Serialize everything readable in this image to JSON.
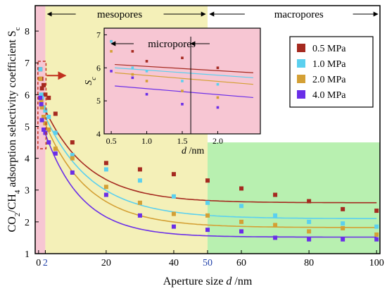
{
  "chart_data": {
    "type": "scatter",
    "xlabel_prefix": "Aperture size ",
    "xlabel_var": "d",
    "xlabel_unit": " /nm",
    "ylabel": "CO2/CH4 adsorption selectivity coefficient Sc",
    "ylabel_parts": {
      "a": "CO",
      "b": "2",
      "c": "/CH",
      "d": "4",
      "e": " adsorption selectivity coefficient S",
      "f": "c"
    },
    "xlim": [
      -1,
      101
    ],
    "ylim": [
      1,
      8.8
    ],
    "x_ticks": [
      "0",
      "2",
      "20",
      "40",
      "50",
      "60",
      "80",
      "100"
    ],
    "x_tick_values": [
      0,
      2,
      20,
      40,
      50,
      60,
      80,
      100
    ],
    "y_ticks": [
      "1",
      "2",
      "3",
      "4",
      "5",
      "6",
      "7",
      "8"
    ],
    "y_tick_values": [
      1,
      2,
      3,
      4,
      5,
      6,
      7,
      8
    ],
    "regions": [
      {
        "name": "micropores",
        "x0": -1,
        "x1": 2,
        "color": "#f7c6d3"
      },
      {
        "name": "mesopores",
        "x0": 2,
        "x1": 50,
        "color": "#f4f0b8"
      },
      {
        "name": "macropores",
        "x0": 50,
        "x1": 101,
        "color": "#b8f0b0"
      }
    ],
    "region_labels": {
      "mesopores": "mesopores",
      "macropores": "macropores",
      "micropores": "micropores"
    },
    "series": [
      {
        "name": "0.5 MPa",
        "color": "#a52a20",
        "points": [
          [
            0.5,
            6.8
          ],
          [
            0.8,
            6.5
          ],
          [
            1.0,
            6.2
          ],
          [
            1.5,
            6.3
          ],
          [
            2.0,
            6.0
          ],
          [
            3,
            5.9
          ],
          [
            5,
            5.4
          ],
          [
            10,
            4.5
          ],
          [
            20,
            3.85
          ],
          [
            30,
            3.65
          ],
          [
            40,
            3.5
          ],
          [
            50,
            3.3
          ],
          [
            60,
            3.05
          ],
          [
            70,
            2.85
          ],
          [
            80,
            2.65
          ],
          [
            90,
            2.4
          ],
          [
            100,
            2.35
          ]
        ],
        "fit": {
          "a": 2.6,
          "b": 3.4,
          "c": 13
        }
      },
      {
        "name": "1.0 MPa",
        "color": "#5bd0ef",
        "points": [
          [
            0.5,
            6.8
          ],
          [
            0.8,
            6.0
          ],
          [
            1.0,
            5.9
          ],
          [
            1.5,
            5.6
          ],
          [
            2.0,
            5.5
          ],
          [
            3,
            5.3
          ],
          [
            5,
            4.8
          ],
          [
            10,
            4.1
          ],
          [
            20,
            3.65
          ],
          [
            30,
            3.3
          ],
          [
            40,
            2.8
          ],
          [
            50,
            2.6
          ],
          [
            60,
            2.5
          ],
          [
            70,
            2.2
          ],
          [
            80,
            2.0
          ],
          [
            90,
            1.95
          ],
          [
            100,
            1.85
          ]
        ],
        "fit": {
          "a": 2.1,
          "b": 3.7,
          "c": 14
        }
      },
      {
        "name": "2.0 MPa",
        "color": "#d4a035",
        "points": [
          [
            0.5,
            6.5
          ],
          [
            0.8,
            5.8
          ],
          [
            1.0,
            5.6
          ],
          [
            1.5,
            5.3
          ],
          [
            2.0,
            5.1
          ],
          [
            3,
            4.9
          ],
          [
            5,
            4.3
          ],
          [
            10,
            4.0
          ],
          [
            20,
            3.1
          ],
          [
            30,
            2.6
          ],
          [
            40,
            2.25
          ],
          [
            50,
            2.2
          ],
          [
            60,
            2.0
          ],
          [
            70,
            1.9
          ],
          [
            80,
            1.7
          ],
          [
            90,
            1.8
          ],
          [
            100,
            1.6
          ]
        ],
        "fit": {
          "a": 1.82,
          "b": 3.8,
          "c": 13
        }
      },
      {
        "name": "4.0 MPa",
        "color": "#6a2ee8",
        "points": [
          [
            0.5,
            5.9
          ],
          [
            0.8,
            5.7
          ],
          [
            1.0,
            5.2
          ],
          [
            1.5,
            4.9
          ],
          [
            2.0,
            4.8
          ],
          [
            3,
            4.5
          ],
          [
            5,
            4.15
          ],
          [
            10,
            3.55
          ],
          [
            20,
            2.85
          ],
          [
            30,
            2.2
          ],
          [
            40,
            1.85
          ],
          [
            50,
            1.75
          ],
          [
            60,
            1.7
          ],
          [
            70,
            1.5
          ],
          [
            80,
            1.45
          ],
          [
            90,
            1.45
          ],
          [
            100,
            1.45
          ]
        ],
        "fit": {
          "a": 1.52,
          "b": 3.9,
          "c": 11
        }
      }
    ],
    "legend_position": "top-right",
    "inset": {
      "xlabel_var": "d",
      "xlabel_unit": " /nm",
      "ylabel": "Sc",
      "xlim": [
        0.4,
        2.6
      ],
      "ylim": [
        4,
        7.2
      ],
      "x_ticks": [
        "0.5",
        "1.0",
        "1.5",
        "2.0"
      ],
      "x_tick_values": [
        0.5,
        1.0,
        1.5,
        2.0
      ],
      "y_ticks": [
        "4",
        "5",
        "6",
        "7"
      ],
      "y_tick_values": [
        4,
        5,
        6,
        7
      ],
      "lines": [
        {
          "series": "0.5 MPa",
          "y0": 6.1,
          "y1": 5.85
        },
        {
          "series": "1.0 MPa",
          "y0": 6.0,
          "y1": 5.7
        },
        {
          "series": "2.0 MPa",
          "y0": 5.85,
          "y1": 5.5
        },
        {
          "series": "4.0 MPa",
          "y0": 5.45,
          "y1": 5.1
        }
      ]
    }
  }
}
